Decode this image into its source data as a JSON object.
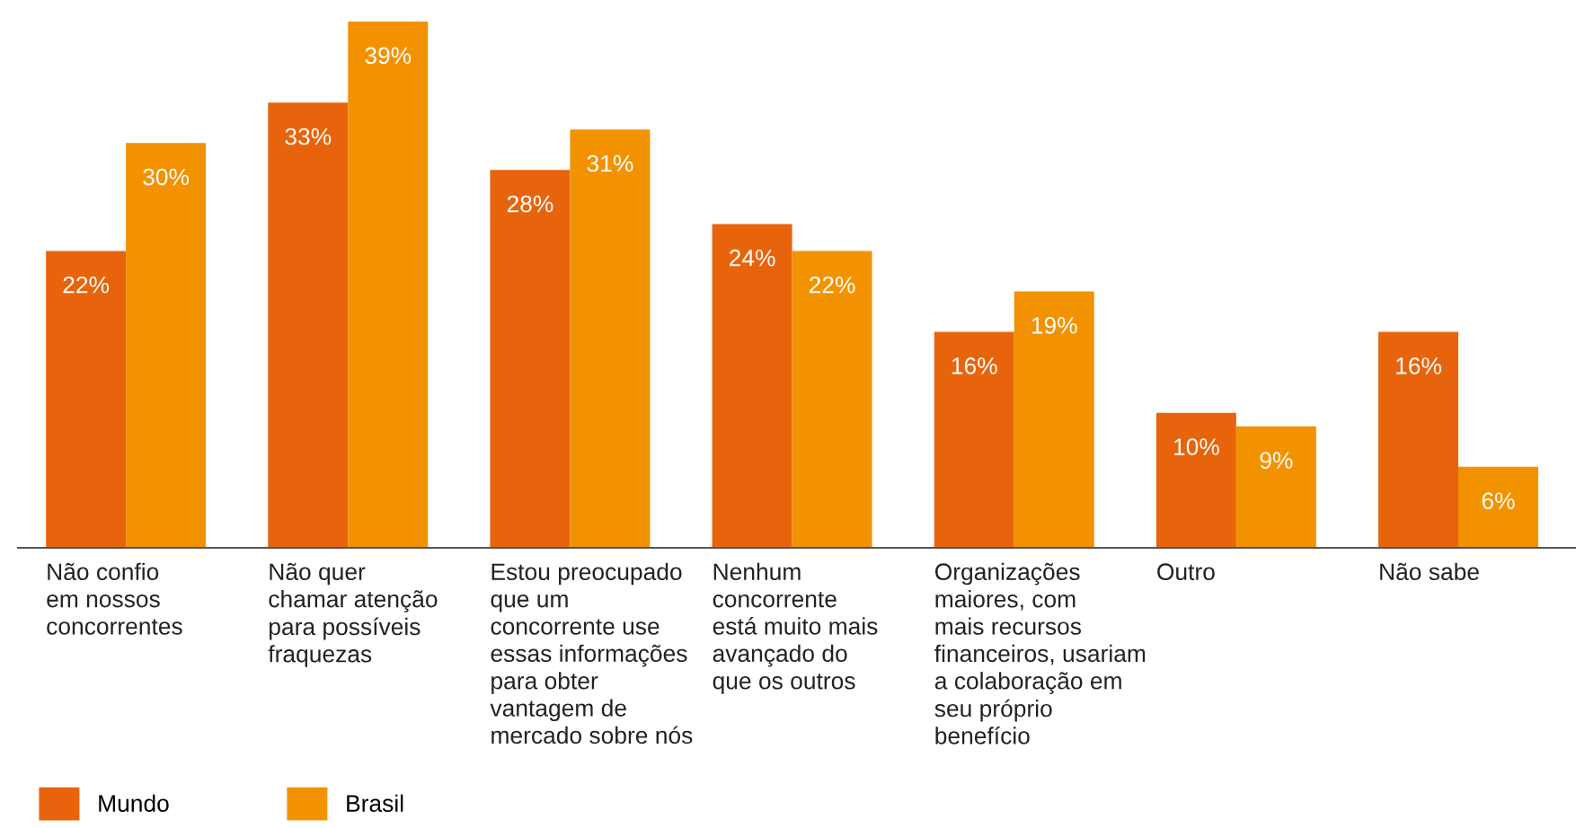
{
  "chart_data": {
    "type": "bar",
    "categories": [
      "Não confio\nem nossos\nconcorrentes",
      "Não quer\nchamar atenção\npara possíveis\nfraquezas",
      "Estou preocupado\nque um\nconcorrente use\nessas informações\npara obter\nvantagem de\nmercado sobre nós",
      "Nenhum\nconcorrente\nestá muito mais\navançado do\nque os outros",
      "Organizações\nmaiores, com\nmais recursos\nfinanceiros, usariam\na colaboração em\nseu próprio\nbenefício",
      "Outro",
      "Não sabe"
    ],
    "series": [
      {
        "name": "Mundo",
        "color": "#e8640c",
        "values": [
          22,
          33,
          28,
          24,
          16,
          10,
          16
        ],
        "value_labels": [
          "22%",
          "33%",
          "28%",
          "24%",
          "16%",
          "10%",
          "16%"
        ]
      },
      {
        "name": "Brasil",
        "color": "#f39200",
        "values": [
          30,
          39,
          31,
          22,
          19,
          9,
          6
        ],
        "value_labels": [
          "30%",
          "39%",
          "31%",
          "22%",
          "19%",
          "9%",
          "6%"
        ]
      }
    ],
    "legend": "bottom left"
  }
}
